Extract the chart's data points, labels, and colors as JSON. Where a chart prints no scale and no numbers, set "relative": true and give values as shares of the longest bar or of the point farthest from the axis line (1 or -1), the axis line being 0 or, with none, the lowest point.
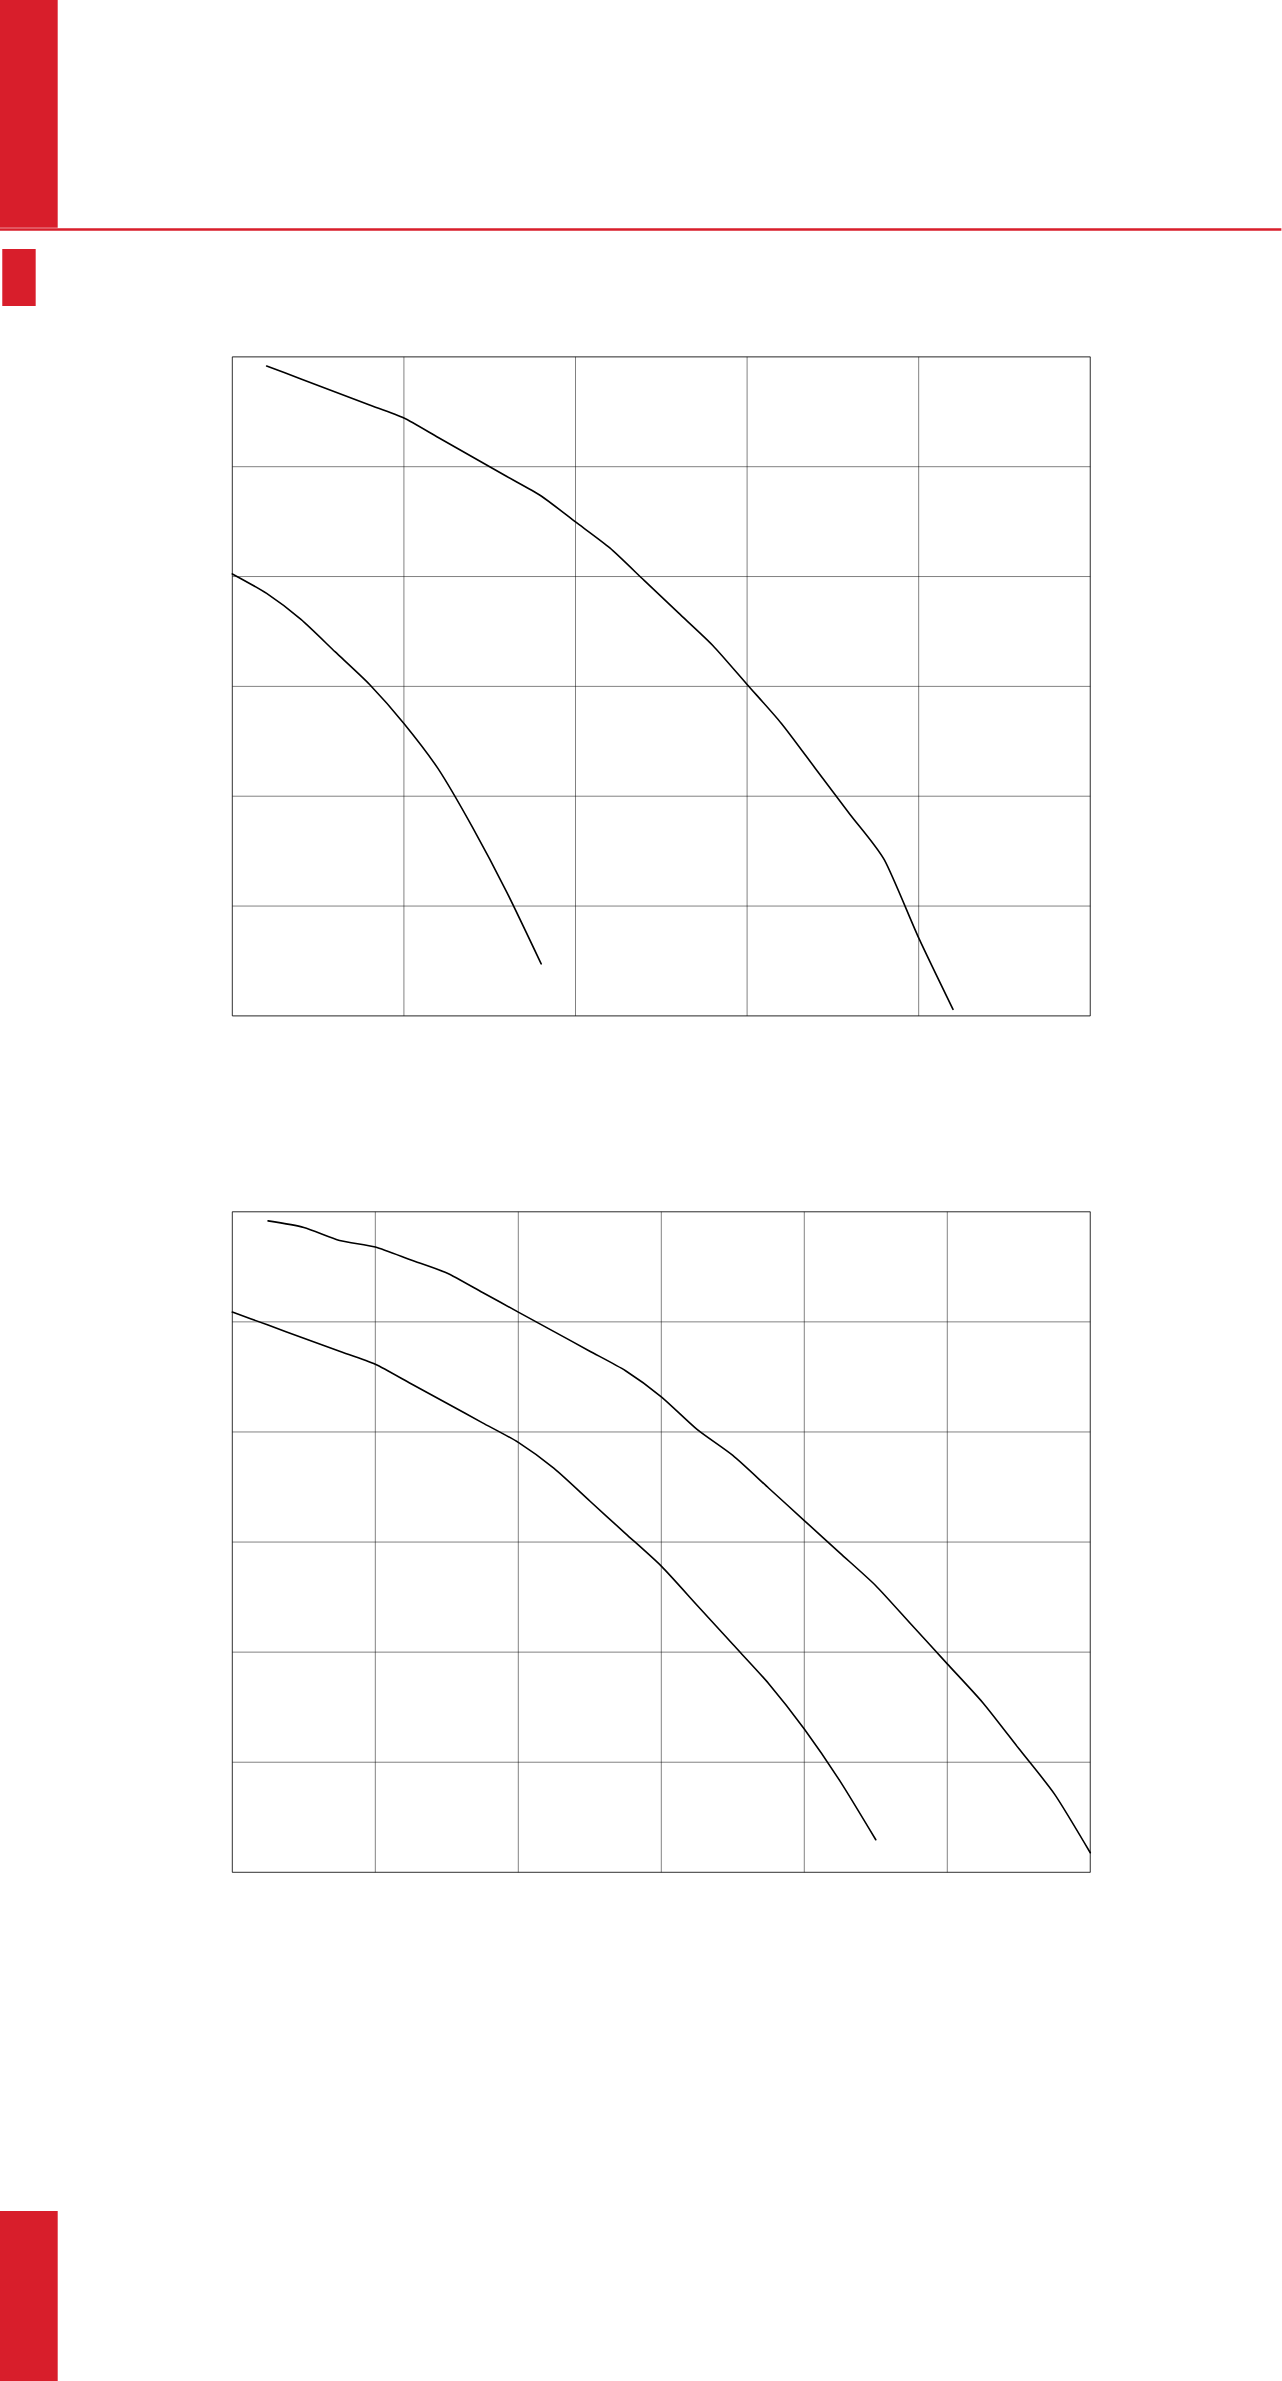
{
  "chart_data": [
    {
      "type": "line",
      "relative": true,
      "grid": true,
      "categories": [
        null,
        null,
        null,
        null,
        null,
        null,
        null,
        null,
        null,
        null,
        null,
        null,
        null,
        null,
        null,
        null,
        null,
        null,
        null,
        null,
        null,
        null,
        null,
        null,
        null,
        null
      ],
      "series": [
        {
          "color": "#000000",
          "values": [
            null,
            1.0,
            0.98,
            0.96,
            0.94,
            0.92,
            0.89,
            0.86,
            0.83,
            0.8,
            0.76,
            0.72,
            0.67,
            0.62,
            0.57,
            0.51,
            0.45,
            0.38,
            0.31,
            0.24,
            0.12,
            0.01,
            null,
            null,
            null,
            null
          ]
        },
        {
          "color": "#000000",
          "values": [
            0.68,
            0.65,
            0.61,
            0.56,
            0.51,
            0.45,
            0.38,
            0.29,
            0.19,
            0.08,
            null,
            null,
            null,
            null,
            null,
            null,
            null,
            null,
            null,
            null,
            null,
            null,
            null,
            null,
            null,
            null
          ]
        }
      ]
    },
    {
      "type": "line",
      "relative": true,
      "grid": true,
      "categories": [
        null,
        null,
        null,
        null,
        null,
        null,
        null,
        null,
        null,
        null,
        null,
        null,
        null,
        null,
        null,
        null,
        null,
        null,
        null,
        null,
        null,
        null,
        null,
        null,
        null
      ],
      "series": [
        {
          "color": "#000000",
          "values": [
            null,
            1.0,
            0.99,
            0.97,
            0.96,
            0.94,
            0.92,
            0.89,
            0.86,
            0.83,
            0.8,
            0.77,
            0.73,
            0.68,
            0.64,
            0.59,
            0.54,
            0.49,
            0.44,
            0.38,
            0.32,
            0.26,
            0.19,
            0.12,
            0.03
          ]
        },
        {
          "color": "#000000",
          "values": [
            0.86,
            0.84,
            0.82,
            0.8,
            0.78,
            0.75,
            0.72,
            0.69,
            0.66,
            0.62,
            0.57,
            0.52,
            0.47,
            0.41,
            0.35,
            0.29,
            0.22,
            0.14,
            0.05,
            null,
            null,
            null,
            null,
            null,
            null
          ]
        }
      ]
    }
  ]
}
